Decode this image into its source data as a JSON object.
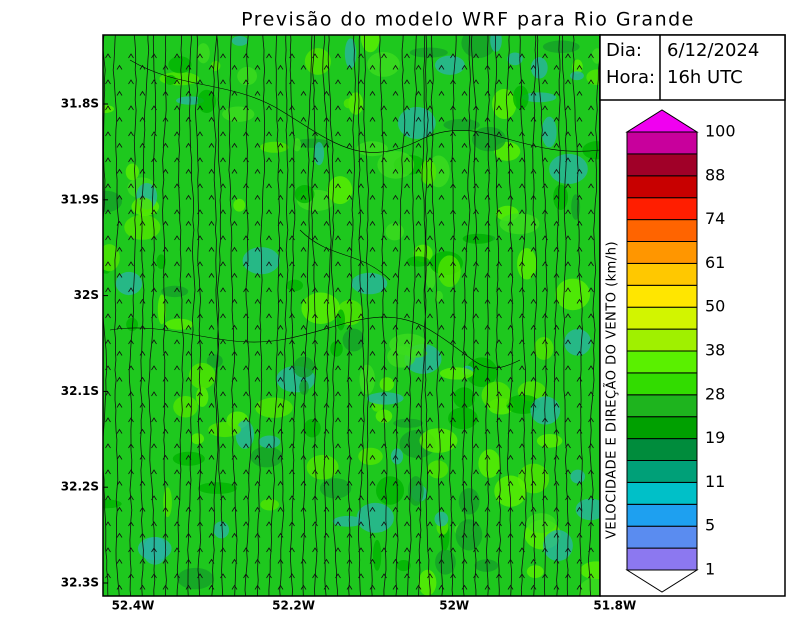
{
  "title": "Previsão do modelo WRF para Rio Grande",
  "info": {
    "day_label": "Dia:",
    "day": "6/12/2024",
    "hour_label": "Hora:",
    "hour": "16h UTC"
  },
  "colorbar": {
    "title": "VELOCIDADE E DIREÇÃO DO VENTO (km/h)",
    "levels": [
      1,
      5,
      11,
      19,
      28,
      38,
      50,
      61,
      74,
      88,
      100
    ],
    "colors": [
      "#8c78f0",
      "#5a8cf0",
      "#1ea0f0",
      "#00c0c8",
      "#00a078",
      "#008c3c",
      "#00a000",
      "#1eb41e",
      "#32dc00",
      "#5af000",
      "#a0f000",
      "#d2f500",
      "#ffe600",
      "#ffc800",
      "#ff9600",
      "#ff6400",
      "#ff1e00",
      "#c80000",
      "#a00028",
      "#c8009c"
    ],
    "over_color": "#f000f0",
    "under_color": "#ffffff"
  },
  "map": {
    "lat_labels": [
      "31.8S",
      "31.9S",
      "32S",
      "32.1S",
      "32.2S",
      "32.3S"
    ],
    "lon_labels": [
      "52.4W",
      "52.2W",
      "52W",
      "51.8W"
    ]
  }
}
